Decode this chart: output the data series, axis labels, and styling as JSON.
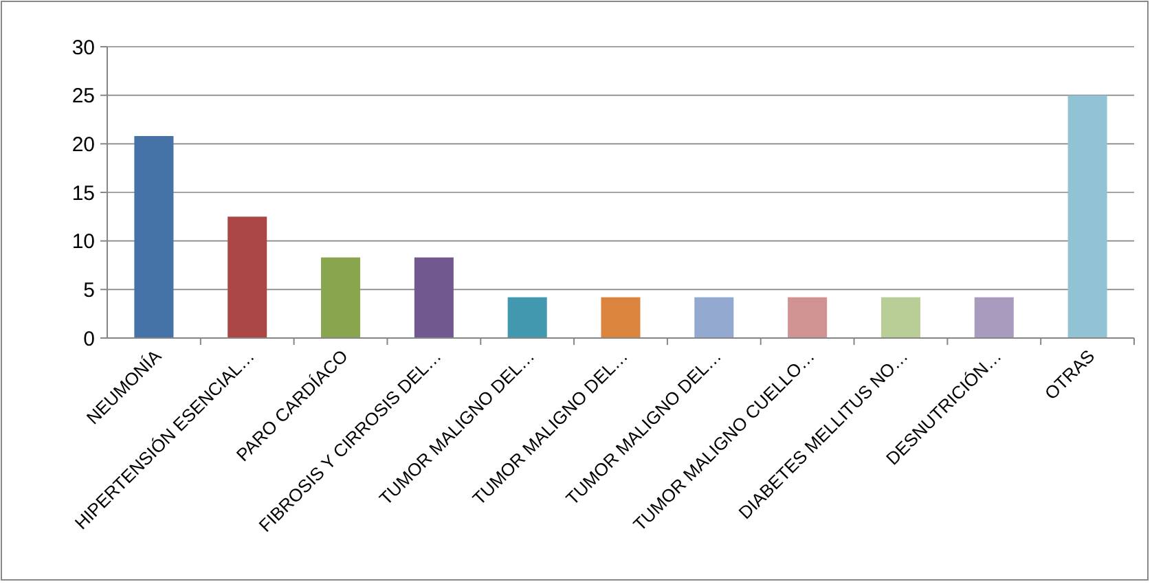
{
  "chart_data": {
    "type": "bar",
    "categories": [
      "NEUMONÍA",
      "HIPERTENSIÓN ESENCIAL…",
      "PARO CARDÍACO",
      "FIBROSIS Y CIRROSIS DEL…",
      "TUMOR MALIGNO DEL…",
      "TUMOR MALIGNO DEL…",
      "TUMOR MALIGNO DEL…",
      "TUMOR MALIGNO CUELLO…",
      "DIABETES MELLITUS NO…",
      "DESNUTRICIÓN…",
      "OTRAS"
    ],
    "values": [
      20.8,
      12.5,
      8.3,
      8.3,
      4.2,
      4.2,
      4.2,
      4.2,
      4.2,
      4.2,
      25
    ],
    "colors": [
      "#4572a7",
      "#aa4643",
      "#89a54e",
      "#71588f",
      "#4198af",
      "#db843d",
      "#93a9cf",
      "#d19392",
      "#b9cd96",
      "#a99bbd",
      "#92c3d4"
    ],
    "ylim": [
      0,
      30
    ],
    "yticks": [
      0,
      5,
      10,
      15,
      20,
      25,
      30
    ],
    "grid": "y"
  }
}
